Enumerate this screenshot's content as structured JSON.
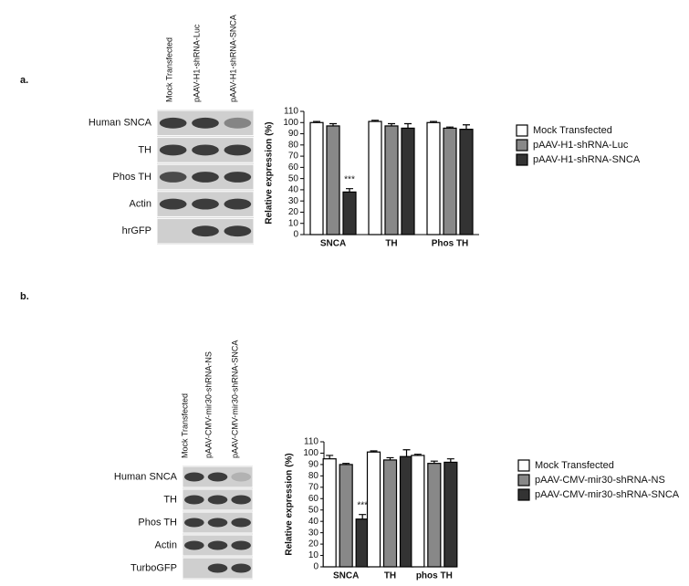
{
  "panels": [
    {
      "label": "a.",
      "lanes": [
        "Mock Transfected",
        "pAAV-H1-shRNA-Luc",
        "pAAV-H1-shRNA-SNCA"
      ],
      "rows": [
        "Human SNCA",
        "TH",
        "Phos TH",
        "Actin",
        "hrGFP"
      ]
    },
    {
      "label": "b.",
      "lanes": [
        "Mock Transfected",
        "pAAV-CMV-mir30-shRNA-NS",
        "pAAV-CMV-mir30-shRNA-SNCA"
      ],
      "rows": [
        "Human SNCA",
        "TH",
        "Phos TH",
        "Actin",
        "TurboGFP"
      ]
    }
  ],
  "chart_data": [
    {
      "type": "bar",
      "ylabel": "Relative expression (%)",
      "categories": [
        "SNCA",
        "TH",
        "Phos TH"
      ],
      "ylim": [
        0,
        110
      ],
      "yticks": [
        0,
        10,
        20,
        30,
        40,
        50,
        60,
        70,
        80,
        90,
        100,
        110
      ],
      "annotation": "***",
      "series": [
        {
          "name": "Mock Transfected",
          "color": "#ffffff",
          "values": [
            100,
            101,
            100
          ],
          "errors": [
            1,
            1,
            1
          ]
        },
        {
          "name": "pAAV-H1-shRNA-Luc",
          "color": "#888888",
          "values": [
            97,
            97,
            95
          ],
          "errors": [
            2,
            2,
            1
          ]
        },
        {
          "name": "pAAV-H1-shRNA-SNCA",
          "color": "#333333",
          "values": [
            38,
            95,
            94
          ],
          "errors": [
            3,
            4,
            4
          ]
        }
      ]
    },
    {
      "type": "bar",
      "ylabel": "Relative expression (%)",
      "categories": [
        "SNCA",
        "TH",
        "phos TH"
      ],
      "ylim": [
        0,
        110
      ],
      "yticks": [
        0,
        10,
        20,
        30,
        40,
        50,
        60,
        70,
        80,
        90,
        100,
        110
      ],
      "annotation": "***",
      "series": [
        {
          "name": "Mock Transfected",
          "color": "#ffffff",
          "values": [
            95,
            101,
            98
          ],
          "errors": [
            3,
            1,
            1
          ]
        },
        {
          "name": "pAAV-CMV-mir30-shRNA-NS",
          "color": "#888888",
          "values": [
            90,
            94,
            91
          ],
          "errors": [
            1,
            2,
            2
          ]
        },
        {
          "name": "pAAV-CMV-mir30-shRNA-SNCA",
          "color": "#333333",
          "values": [
            42,
            97,
            92
          ],
          "errors": [
            4,
            6,
            3
          ]
        }
      ]
    }
  ]
}
